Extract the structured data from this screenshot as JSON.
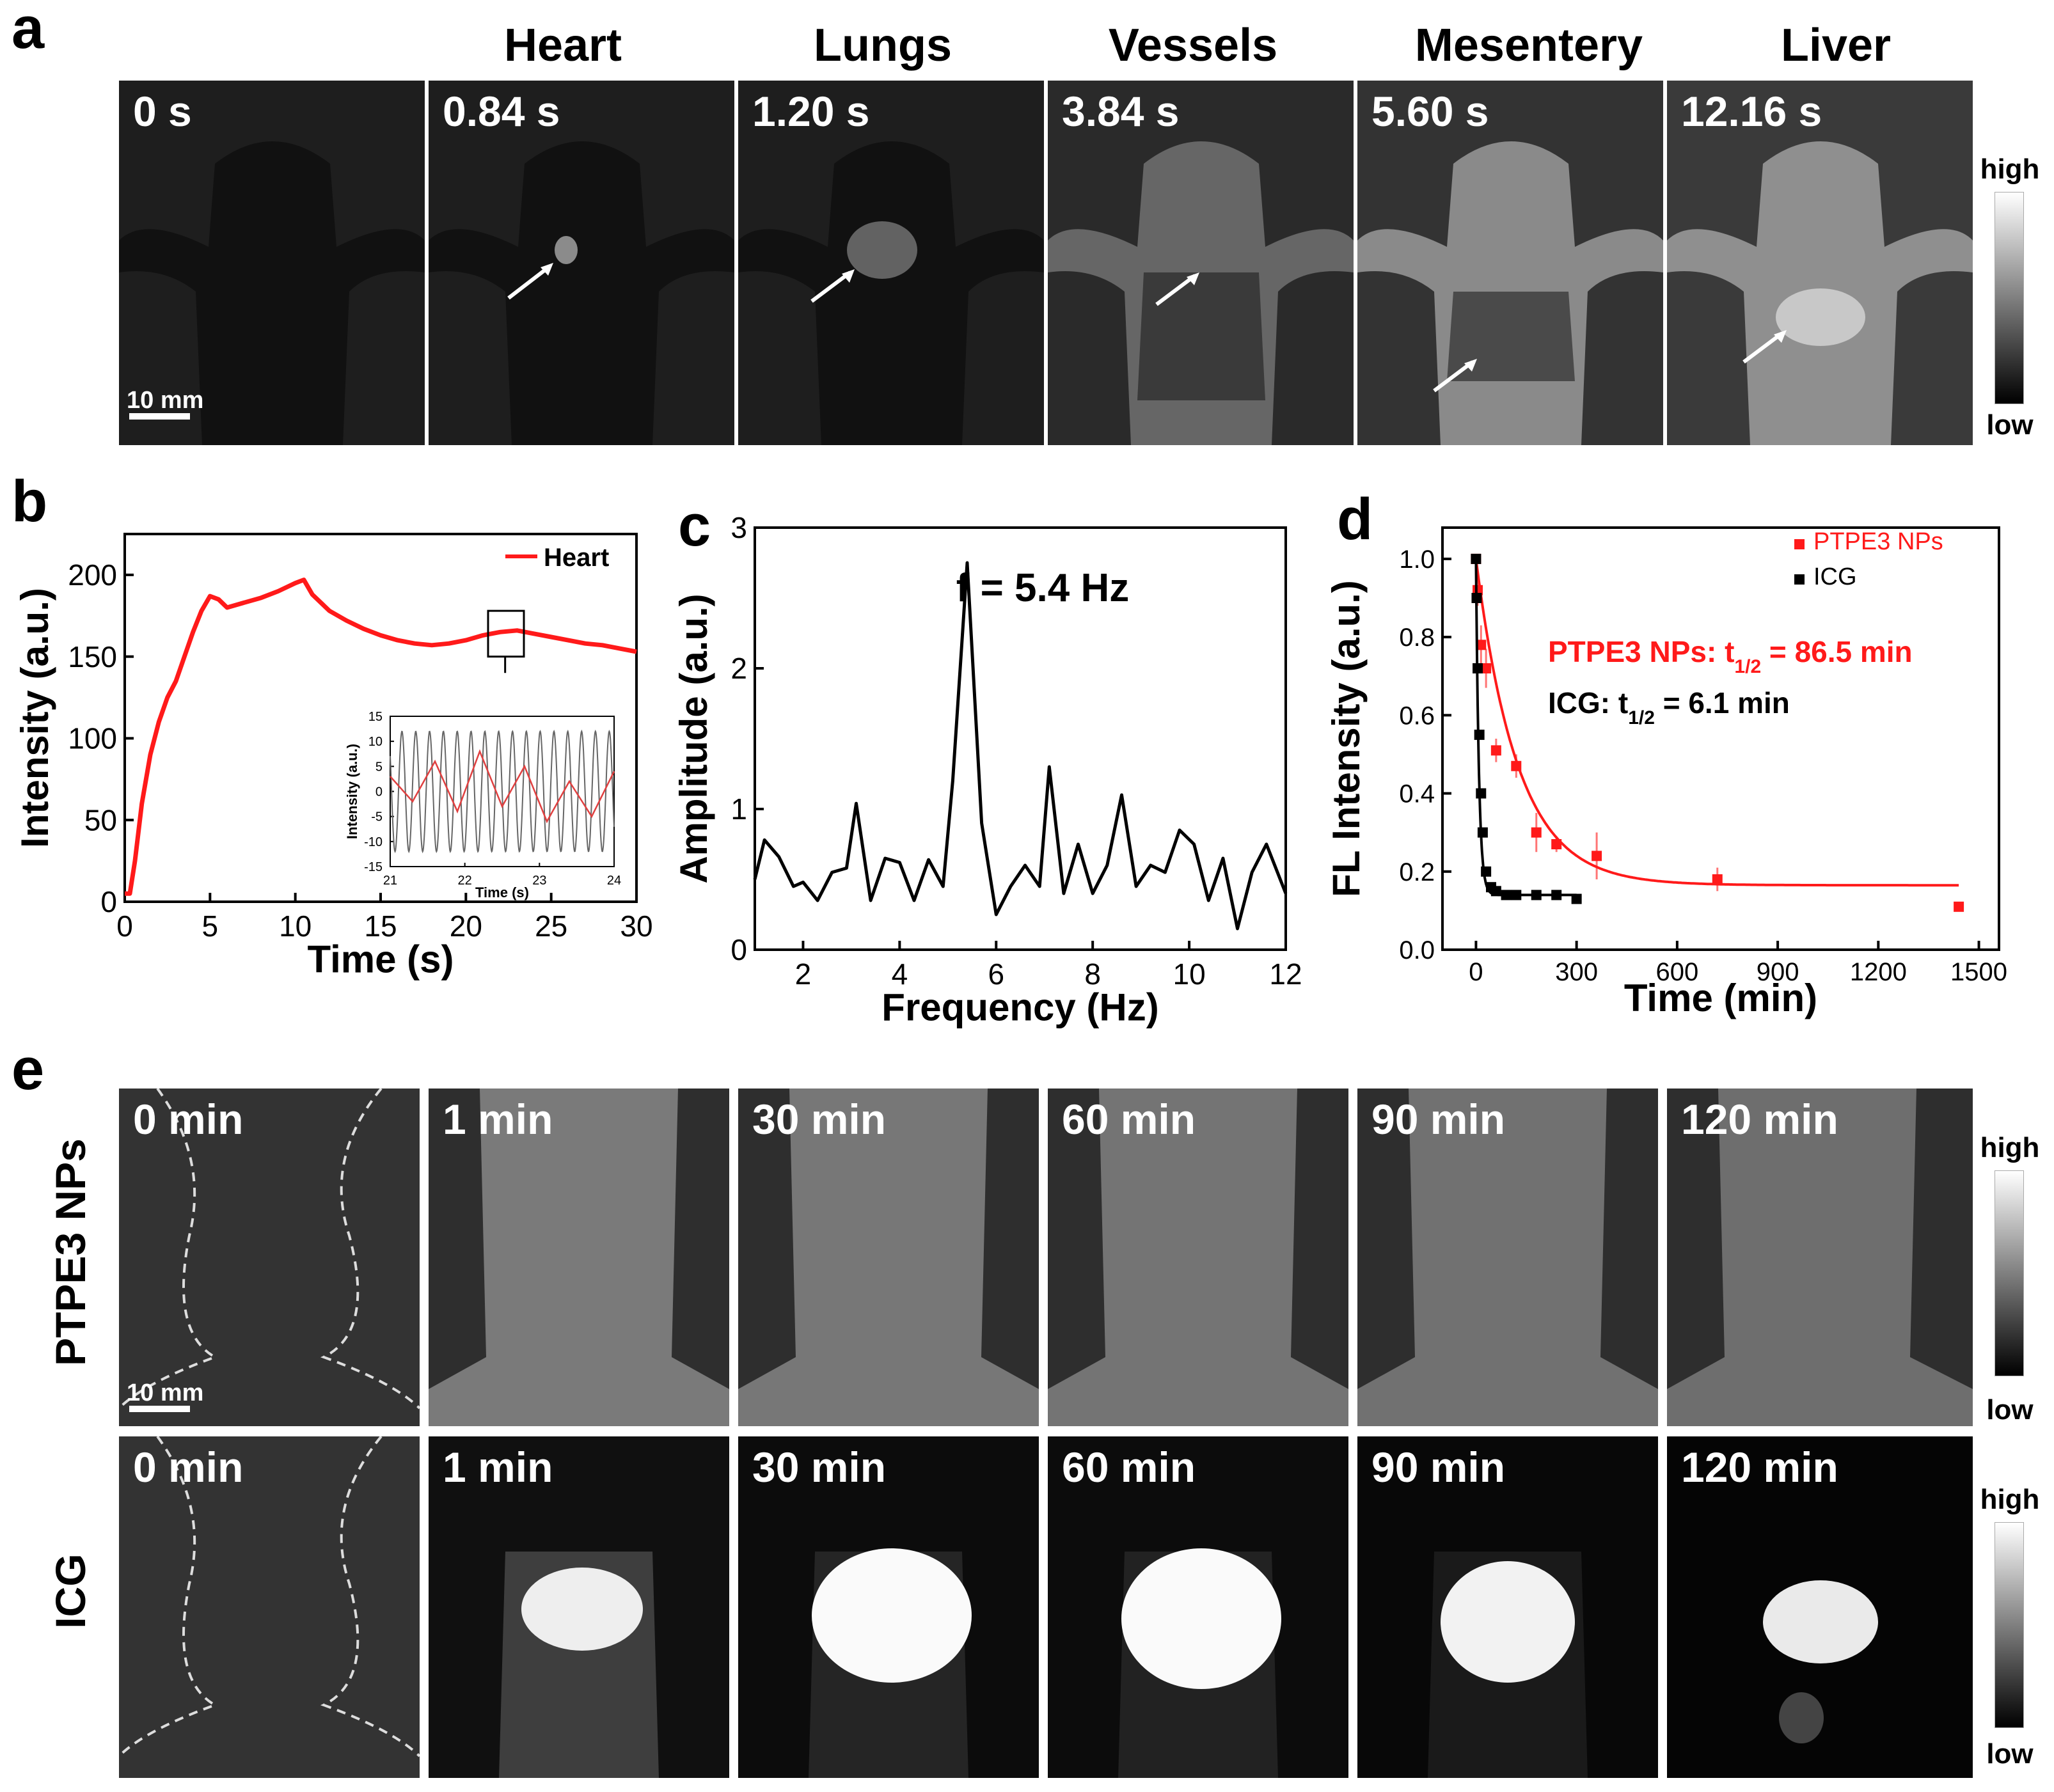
{
  "panel_labels": {
    "a": "a",
    "b": "b",
    "c": "c",
    "d": "d",
    "e": "e"
  },
  "panel_a": {
    "column_titles": [
      "Heart",
      "Lungs",
      "Vessels",
      "Mesentery",
      "Liver"
    ],
    "time_labels": [
      "0 s",
      "0.84 s",
      "1.20 s",
      "3.84 s",
      "5.60 s",
      "12.16 s"
    ],
    "scale_bar": "10 mm",
    "colorbar": {
      "high": "high",
      "low": "low"
    }
  },
  "panel_e": {
    "row_labels": [
      "PTPE3 NPs",
      "ICG"
    ],
    "time_labels": [
      "0 min",
      "1 min",
      "30 min",
      "60 min",
      "90 min",
      "120 min"
    ],
    "scale_bar": "10 mm",
    "colorbar": {
      "high": "high",
      "low": "low"
    }
  },
  "chart_data": [
    {
      "panel": "b",
      "type": "line",
      "xlabel": "Time (s)",
      "ylabel": "Intensity (a.u.)",
      "xlim": [
        0,
        30
      ],
      "ylim": [
        0,
        225
      ],
      "xticks": [
        0,
        5,
        10,
        15,
        20,
        25,
        30
      ],
      "yticks": [
        0,
        50,
        100,
        150,
        200
      ],
      "legend": "top-right",
      "series": [
        {
          "name": "Heart",
          "color": "#ff1a1a",
          "x": [
            0,
            0.3,
            0.6,
            1.0,
            1.5,
            2.0,
            2.5,
            3.0,
            3.5,
            4.0,
            4.5,
            5.0,
            5.5,
            6.0,
            7.0,
            8.0,
            9.0,
            10.0,
            10.5,
            11.0,
            12.0,
            13.0,
            14.0,
            15.0,
            16.0,
            17.0,
            18.0,
            19.0,
            20.0,
            21.0,
            22.0,
            23.0,
            24.0,
            25.0,
            26.0,
            27.0,
            28.0,
            29.0,
            30.0
          ],
          "y": [
            5,
            5,
            25,
            60,
            90,
            110,
            125,
            135,
            150,
            165,
            178,
            187,
            185,
            180,
            183,
            186,
            190,
            195,
            197,
            188,
            178,
            172,
            167,
            163,
            160,
            158,
            157,
            158,
            160,
            163,
            165,
            166,
            164,
            162,
            160,
            158,
            157,
            155,
            153
          ]
        }
      ],
      "inset": {
        "type": "line",
        "xlabel": "Time (s)",
        "ylabel": "Intensity (a.u.)",
        "xlim": [
          21,
          24
        ],
        "ylim": [
          -15,
          15
        ],
        "xticks": [
          21,
          22,
          23,
          24
        ],
        "yticks": [
          -15,
          -10,
          -5,
          0,
          5,
          10,
          15
        ],
        "series": [
          {
            "color": "#666666",
            "frequency_hz": 5.4,
            "amplitude": 12
          },
          {
            "color": "#e04040",
            "x": [
              21,
              21.3,
              21.6,
              21.9,
              22.2,
              22.5,
              22.8,
              23.1,
              23.4,
              23.7,
              24.0
            ],
            "y": [
              3,
              -2,
              6,
              -4,
              8,
              -3,
              5,
              -6,
              2,
              -5,
              4
            ]
          }
        ]
      }
    },
    {
      "panel": "c",
      "type": "line",
      "xlabel": "Frequency (Hz)",
      "ylabel": "Amplitude (a.u.)",
      "xlim": [
        1,
        12
      ],
      "ylim": [
        0,
        3
      ],
      "xticks": [
        2,
        4,
        6,
        8,
        10,
        12
      ],
      "yticks": [
        0,
        1,
        2,
        3
      ],
      "annotation": "f = 5.4 Hz",
      "series": [
        {
          "color": "#000000",
          "x": [
            1.0,
            1.2,
            1.5,
            1.8,
            2.0,
            2.3,
            2.6,
            2.9,
            3.1,
            3.4,
            3.7,
            4.0,
            4.3,
            4.6,
            4.9,
            5.1,
            5.4,
            5.7,
            6.0,
            6.3,
            6.6,
            6.9,
            7.1,
            7.4,
            7.7,
            8.0,
            8.3,
            8.6,
            8.9,
            9.2,
            9.5,
            9.8,
            10.1,
            10.4,
            10.7,
            11.0,
            11.3,
            11.6,
            12.0
          ],
          "y": [
            0.5,
            0.78,
            0.66,
            0.45,
            0.48,
            0.35,
            0.55,
            0.58,
            1.04,
            0.35,
            0.65,
            0.62,
            0.35,
            0.64,
            0.45,
            1.2,
            2.75,
            0.9,
            0.25,
            0.45,
            0.6,
            0.45,
            1.3,
            0.4,
            0.75,
            0.4,
            0.6,
            1.1,
            0.45,
            0.6,
            0.55,
            0.85,
            0.75,
            0.35,
            0.65,
            0.15,
            0.55,
            0.75,
            0.4
          ]
        }
      ]
    },
    {
      "panel": "d",
      "type": "scatter",
      "xlabel": "Time (min)",
      "ylabel": "FL Intensity (a.u.)",
      "xlim": [
        -100,
        1560
      ],
      "ylim": [
        0,
        1.08
      ],
      "xticks": [
        0,
        300,
        600,
        900,
        1200,
        1500
      ],
      "yticks": [
        0.0,
        0.2,
        0.4,
        0.6,
        0.8,
        1.0
      ],
      "legend": "top-right",
      "annotations": [
        {
          "text": "PTPE3 NPs: t",
          "sub": "1/2",
          "after": " = 86.5 min",
          "color": "#ff1a1a"
        },
        {
          "text": "ICG: t",
          "sub": "1/2",
          "after": " = 6.1 min",
          "color": "#000000"
        }
      ],
      "series": [
        {
          "name": "PTPE3 NPs",
          "color": "#ff1a1a",
          "x": [
            0,
            5,
            15,
            30,
            60,
            120,
            180,
            240,
            360,
            720,
            1440
          ],
          "y": [
            1.0,
            0.92,
            0.78,
            0.72,
            0.51,
            0.47,
            0.3,
            0.27,
            0.24,
            0.18,
            0.11
          ],
          "err": [
            0.0,
            0.04,
            0.05,
            0.05,
            0.03,
            0.03,
            0.05,
            0.02,
            0.06,
            0.03,
            0.01
          ],
          "fit": {
            "plateau": 0.165,
            "half_life": 86.5
          }
        },
        {
          "name": "ICG",
          "color": "#000000",
          "x": [
            0,
            2,
            5,
            10,
            15,
            20,
            30,
            45,
            60,
            90,
            120,
            180,
            240,
            300
          ],
          "y": [
            1.0,
            0.9,
            0.72,
            0.55,
            0.4,
            0.3,
            0.2,
            0.16,
            0.15,
            0.14,
            0.14,
            0.14,
            0.14,
            0.13
          ],
          "fit": {
            "plateau": 0.14,
            "half_life": 6.1
          }
        }
      ]
    }
  ],
  "colors": {
    "accent_red": "#ff1a1a",
    "black": "#000000"
  }
}
